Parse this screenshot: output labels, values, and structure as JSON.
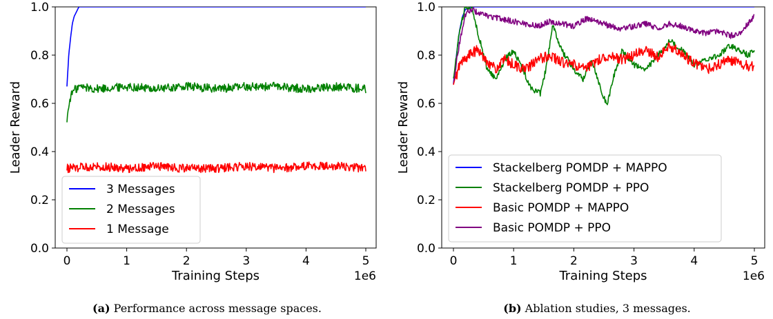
{
  "chart_data": [
    {
      "type": "line",
      "title": "",
      "caption_label": "(a)",
      "caption_text": "Performance across message spaces.",
      "xlabel": "Training Steps",
      "ylabel": "Leader Reward",
      "x_scale_label": "1e6",
      "xlim": [
        0,
        5
      ],
      "ylim": [
        0,
        1
      ],
      "x_ticks": [
        "0",
        "1",
        "2",
        "3",
        "4",
        "5"
      ],
      "y_ticks": [
        "0.0",
        "0.2",
        "0.4",
        "0.6",
        "0.8",
        "1.0"
      ],
      "legend_position": "lower-left",
      "series": [
        {
          "name": "3 Messages",
          "color": "#0000ff",
          "points": [
            [
              0,
              0.67
            ],
            [
              0.03,
              0.8
            ],
            [
              0.06,
              0.87
            ],
            [
              0.09,
              0.93
            ],
            [
              0.12,
              0.96
            ],
            [
              0.16,
              0.98
            ],
            [
              0.2,
              1.0
            ],
            [
              0.3,
              1.0
            ],
            [
              1,
              1.0
            ],
            [
              2,
              1.0
            ],
            [
              3,
              1.0
            ],
            [
              4,
              1.0
            ],
            [
              5,
              1.0
            ]
          ]
        },
        {
          "name": "2 Messages",
          "color": "#008000",
          "points": [
            [
              0,
              0.53
            ],
            [
              0.05,
              0.62
            ],
            [
              0.1,
              0.65
            ],
            [
              0.2,
              0.67
            ],
            [
              0.5,
              0.66
            ],
            [
              1,
              0.67
            ],
            [
              1.5,
              0.66
            ],
            [
              2,
              0.67
            ],
            [
              2.5,
              0.66
            ],
            [
              3,
              0.67
            ],
            [
              3.5,
              0.67
            ],
            [
              4,
              0.66
            ],
            [
              4.5,
              0.67
            ],
            [
              5,
              0.66
            ]
          ]
        },
        {
          "name": "1 Message",
          "color": "#ff0000",
          "points": [
            [
              0,
              0.33
            ],
            [
              0.5,
              0.34
            ],
            [
              1,
              0.33
            ],
            [
              1.5,
              0.34
            ],
            [
              2,
              0.33
            ],
            [
              2.5,
              0.33
            ],
            [
              3,
              0.34
            ],
            [
              3.5,
              0.33
            ],
            [
              4,
              0.34
            ],
            [
              4.5,
              0.34
            ],
            [
              5,
              0.33
            ]
          ]
        }
      ]
    },
    {
      "type": "line",
      "title": "",
      "caption_label": "(b)",
      "caption_text": "Ablation studies, 3 messages.",
      "xlabel": "Training Steps",
      "ylabel": "Leader Reward",
      "x_scale_label": "1e6",
      "xlim": [
        0,
        5
      ],
      "ylim": [
        0,
        1
      ],
      "x_ticks": [
        "0",
        "1",
        "2",
        "3",
        "4",
        "5"
      ],
      "y_ticks": [
        "0.0",
        "0.2",
        "0.4",
        "0.6",
        "0.8",
        "1.0"
      ],
      "legend_position": "lower-left",
      "series": [
        {
          "name": "Stackelberg POMDP + MAPPO",
          "color": "#0000ff",
          "points": [
            [
              0,
              0.68
            ],
            [
              0.05,
              0.8
            ],
            [
              0.1,
              0.9
            ],
            [
              0.15,
              0.96
            ],
            [
              0.2,
              0.99
            ],
            [
              0.3,
              1.0
            ],
            [
              1,
              1.0
            ],
            [
              2,
              1.0
            ],
            [
              3,
              1.0
            ],
            [
              4,
              1.0
            ],
            [
              5,
              1.0
            ]
          ]
        },
        {
          "name": "Stackelberg POMDP + PPO",
          "color": "#008000",
          "points": [
            [
              0,
              0.7
            ],
            [
              0.1,
              0.9
            ],
            [
              0.2,
              1.0
            ],
            [
              0.3,
              1.0
            ],
            [
              0.4,
              0.9
            ],
            [
              0.55,
              0.75
            ],
            [
              0.7,
              0.7
            ],
            [
              0.85,
              0.78
            ],
            [
              1,
              0.82
            ],
            [
              1.15,
              0.74
            ],
            [
              1.3,
              0.66
            ],
            [
              1.45,
              0.64
            ],
            [
              1.55,
              0.76
            ],
            [
              1.65,
              0.92
            ],
            [
              1.8,
              0.82
            ],
            [
              2,
              0.74
            ],
            [
              2.15,
              0.7
            ],
            [
              2.3,
              0.78
            ],
            [
              2.45,
              0.66
            ],
            [
              2.55,
              0.59
            ],
            [
              2.65,
              0.7
            ],
            [
              2.8,
              0.82
            ],
            [
              3,
              0.76
            ],
            [
              3.2,
              0.74
            ],
            [
              3.4,
              0.8
            ],
            [
              3.6,
              0.86
            ],
            [
              3.8,
              0.82
            ],
            [
              4,
              0.76
            ],
            [
              4.2,
              0.78
            ],
            [
              4.4,
              0.8
            ],
            [
              4.6,
              0.84
            ],
            [
              4.75,
              0.82
            ],
            [
              4.9,
              0.8
            ],
            [
              5,
              0.82
            ]
          ]
        },
        {
          "name": "Basic POMDP + MAPPO",
          "color": "#ff0000",
          "points": [
            [
              0,
              0.67
            ],
            [
              0.1,
              0.76
            ],
            [
              0.25,
              0.8
            ],
            [
              0.4,
              0.82
            ],
            [
              0.55,
              0.78
            ],
            [
              0.7,
              0.74
            ],
            [
              0.85,
              0.78
            ],
            [
              1,
              0.76
            ],
            [
              1.2,
              0.74
            ],
            [
              1.4,
              0.78
            ],
            [
              1.6,
              0.8
            ],
            [
              1.8,
              0.77
            ],
            [
              2,
              0.76
            ],
            [
              2.2,
              0.74
            ],
            [
              2.4,
              0.78
            ],
            [
              2.6,
              0.8
            ],
            [
              2.8,
              0.78
            ],
            [
              3,
              0.8
            ],
            [
              3.2,
              0.82
            ],
            [
              3.4,
              0.79
            ],
            [
              3.6,
              0.84
            ],
            [
              3.8,
              0.8
            ],
            [
              4,
              0.77
            ],
            [
              4.2,
              0.74
            ],
            [
              4.4,
              0.76
            ],
            [
              4.6,
              0.78
            ],
            [
              4.8,
              0.76
            ],
            [
              5,
              0.75
            ]
          ]
        },
        {
          "name": "Basic POMDP + PPO",
          "color": "#800080",
          "points": [
            [
              0,
              0.69
            ],
            [
              0.1,
              0.85
            ],
            [
              0.2,
              0.97
            ],
            [
              0.3,
              0.99
            ],
            [
              0.45,
              0.97
            ],
            [
              0.6,
              0.96
            ],
            [
              0.8,
              0.95
            ],
            [
              1,
              0.94
            ],
            [
              1.2,
              0.93
            ],
            [
              1.4,
              0.92
            ],
            [
              1.6,
              0.94
            ],
            [
              1.8,
              0.93
            ],
            [
              2,
              0.92
            ],
            [
              2.2,
              0.95
            ],
            [
              2.4,
              0.94
            ],
            [
              2.6,
              0.92
            ],
            [
              2.8,
              0.91
            ],
            [
              3,
              0.92
            ],
            [
              3.2,
              0.93
            ],
            [
              3.4,
              0.91
            ],
            [
              3.6,
              0.93
            ],
            [
              3.8,
              0.92
            ],
            [
              4,
              0.9
            ],
            [
              4.2,
              0.89
            ],
            [
              4.4,
              0.9
            ],
            [
              4.6,
              0.88
            ],
            [
              4.75,
              0.89
            ],
            [
              4.9,
              0.93
            ],
            [
              5,
              0.96
            ]
          ]
        }
      ]
    }
  ]
}
